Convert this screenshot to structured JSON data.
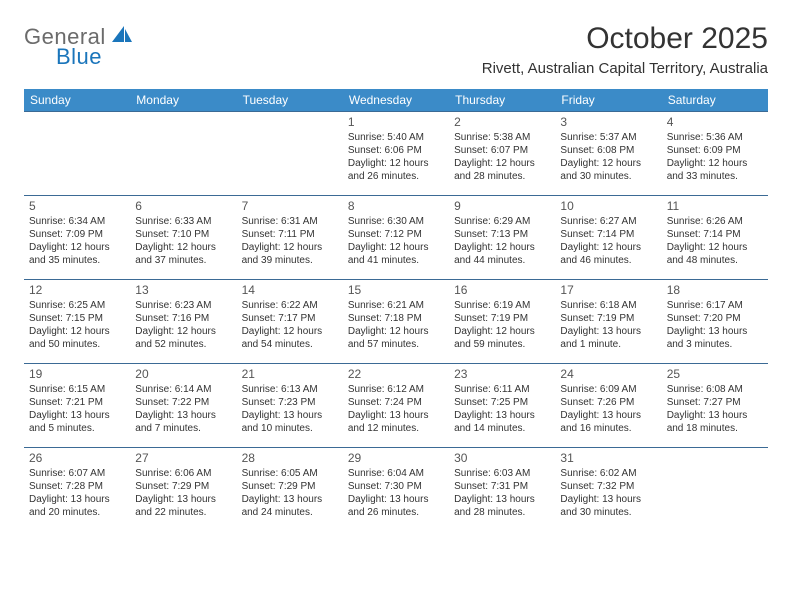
{
  "logo": {
    "general": "General",
    "blue": "Blue"
  },
  "title": "October 2025",
  "location": "Rivett, Australian Capital Territory, Australia",
  "colors": {
    "header_bg": "#3b8bc8",
    "header_text": "#ffffff",
    "cell_border": "#3b6a95",
    "logo_gray": "#6b6b6b",
    "logo_blue": "#1a75bb",
    "text": "#333333"
  },
  "day_headers": [
    "Sunday",
    "Monday",
    "Tuesday",
    "Wednesday",
    "Thursday",
    "Friday",
    "Saturday"
  ],
  "weeks": [
    [
      null,
      null,
      null,
      {
        "n": "1",
        "sr": "5:40 AM",
        "ss": "6:06 PM",
        "dl": "12 hours and 26 minutes."
      },
      {
        "n": "2",
        "sr": "5:38 AM",
        "ss": "6:07 PM",
        "dl": "12 hours and 28 minutes."
      },
      {
        "n": "3",
        "sr": "5:37 AM",
        "ss": "6:08 PM",
        "dl": "12 hours and 30 minutes."
      },
      {
        "n": "4",
        "sr": "5:36 AM",
        "ss": "6:09 PM",
        "dl": "12 hours and 33 minutes."
      }
    ],
    [
      {
        "n": "5",
        "sr": "6:34 AM",
        "ss": "7:09 PM",
        "dl": "12 hours and 35 minutes."
      },
      {
        "n": "6",
        "sr": "6:33 AM",
        "ss": "7:10 PM",
        "dl": "12 hours and 37 minutes."
      },
      {
        "n": "7",
        "sr": "6:31 AM",
        "ss": "7:11 PM",
        "dl": "12 hours and 39 minutes."
      },
      {
        "n": "8",
        "sr": "6:30 AM",
        "ss": "7:12 PM",
        "dl": "12 hours and 41 minutes."
      },
      {
        "n": "9",
        "sr": "6:29 AM",
        "ss": "7:13 PM",
        "dl": "12 hours and 44 minutes."
      },
      {
        "n": "10",
        "sr": "6:27 AM",
        "ss": "7:14 PM",
        "dl": "12 hours and 46 minutes."
      },
      {
        "n": "11",
        "sr": "6:26 AM",
        "ss": "7:14 PM",
        "dl": "12 hours and 48 minutes."
      }
    ],
    [
      {
        "n": "12",
        "sr": "6:25 AM",
        "ss": "7:15 PM",
        "dl": "12 hours and 50 minutes."
      },
      {
        "n": "13",
        "sr": "6:23 AM",
        "ss": "7:16 PM",
        "dl": "12 hours and 52 minutes."
      },
      {
        "n": "14",
        "sr": "6:22 AM",
        "ss": "7:17 PM",
        "dl": "12 hours and 54 minutes."
      },
      {
        "n": "15",
        "sr": "6:21 AM",
        "ss": "7:18 PM",
        "dl": "12 hours and 57 minutes."
      },
      {
        "n": "16",
        "sr": "6:19 AM",
        "ss": "7:19 PM",
        "dl": "12 hours and 59 minutes."
      },
      {
        "n": "17",
        "sr": "6:18 AM",
        "ss": "7:19 PM",
        "dl": "13 hours and 1 minute."
      },
      {
        "n": "18",
        "sr": "6:17 AM",
        "ss": "7:20 PM",
        "dl": "13 hours and 3 minutes."
      }
    ],
    [
      {
        "n": "19",
        "sr": "6:15 AM",
        "ss": "7:21 PM",
        "dl": "13 hours and 5 minutes."
      },
      {
        "n": "20",
        "sr": "6:14 AM",
        "ss": "7:22 PM",
        "dl": "13 hours and 7 minutes."
      },
      {
        "n": "21",
        "sr": "6:13 AM",
        "ss": "7:23 PM",
        "dl": "13 hours and 10 minutes."
      },
      {
        "n": "22",
        "sr": "6:12 AM",
        "ss": "7:24 PM",
        "dl": "13 hours and 12 minutes."
      },
      {
        "n": "23",
        "sr": "6:11 AM",
        "ss": "7:25 PM",
        "dl": "13 hours and 14 minutes."
      },
      {
        "n": "24",
        "sr": "6:09 AM",
        "ss": "7:26 PM",
        "dl": "13 hours and 16 minutes."
      },
      {
        "n": "25",
        "sr": "6:08 AM",
        "ss": "7:27 PM",
        "dl": "13 hours and 18 minutes."
      }
    ],
    [
      {
        "n": "26",
        "sr": "6:07 AM",
        "ss": "7:28 PM",
        "dl": "13 hours and 20 minutes."
      },
      {
        "n": "27",
        "sr": "6:06 AM",
        "ss": "7:29 PM",
        "dl": "13 hours and 22 minutes."
      },
      {
        "n": "28",
        "sr": "6:05 AM",
        "ss": "7:29 PM",
        "dl": "13 hours and 24 minutes."
      },
      {
        "n": "29",
        "sr": "6:04 AM",
        "ss": "7:30 PM",
        "dl": "13 hours and 26 minutes."
      },
      {
        "n": "30",
        "sr": "6:03 AM",
        "ss": "7:31 PM",
        "dl": "13 hours and 28 minutes."
      },
      {
        "n": "31",
        "sr": "6:02 AM",
        "ss": "7:32 PM",
        "dl": "13 hours and 30 minutes."
      },
      null
    ]
  ],
  "labels": {
    "sunrise": "Sunrise:",
    "sunset": "Sunset:",
    "daylight": "Daylight:"
  }
}
